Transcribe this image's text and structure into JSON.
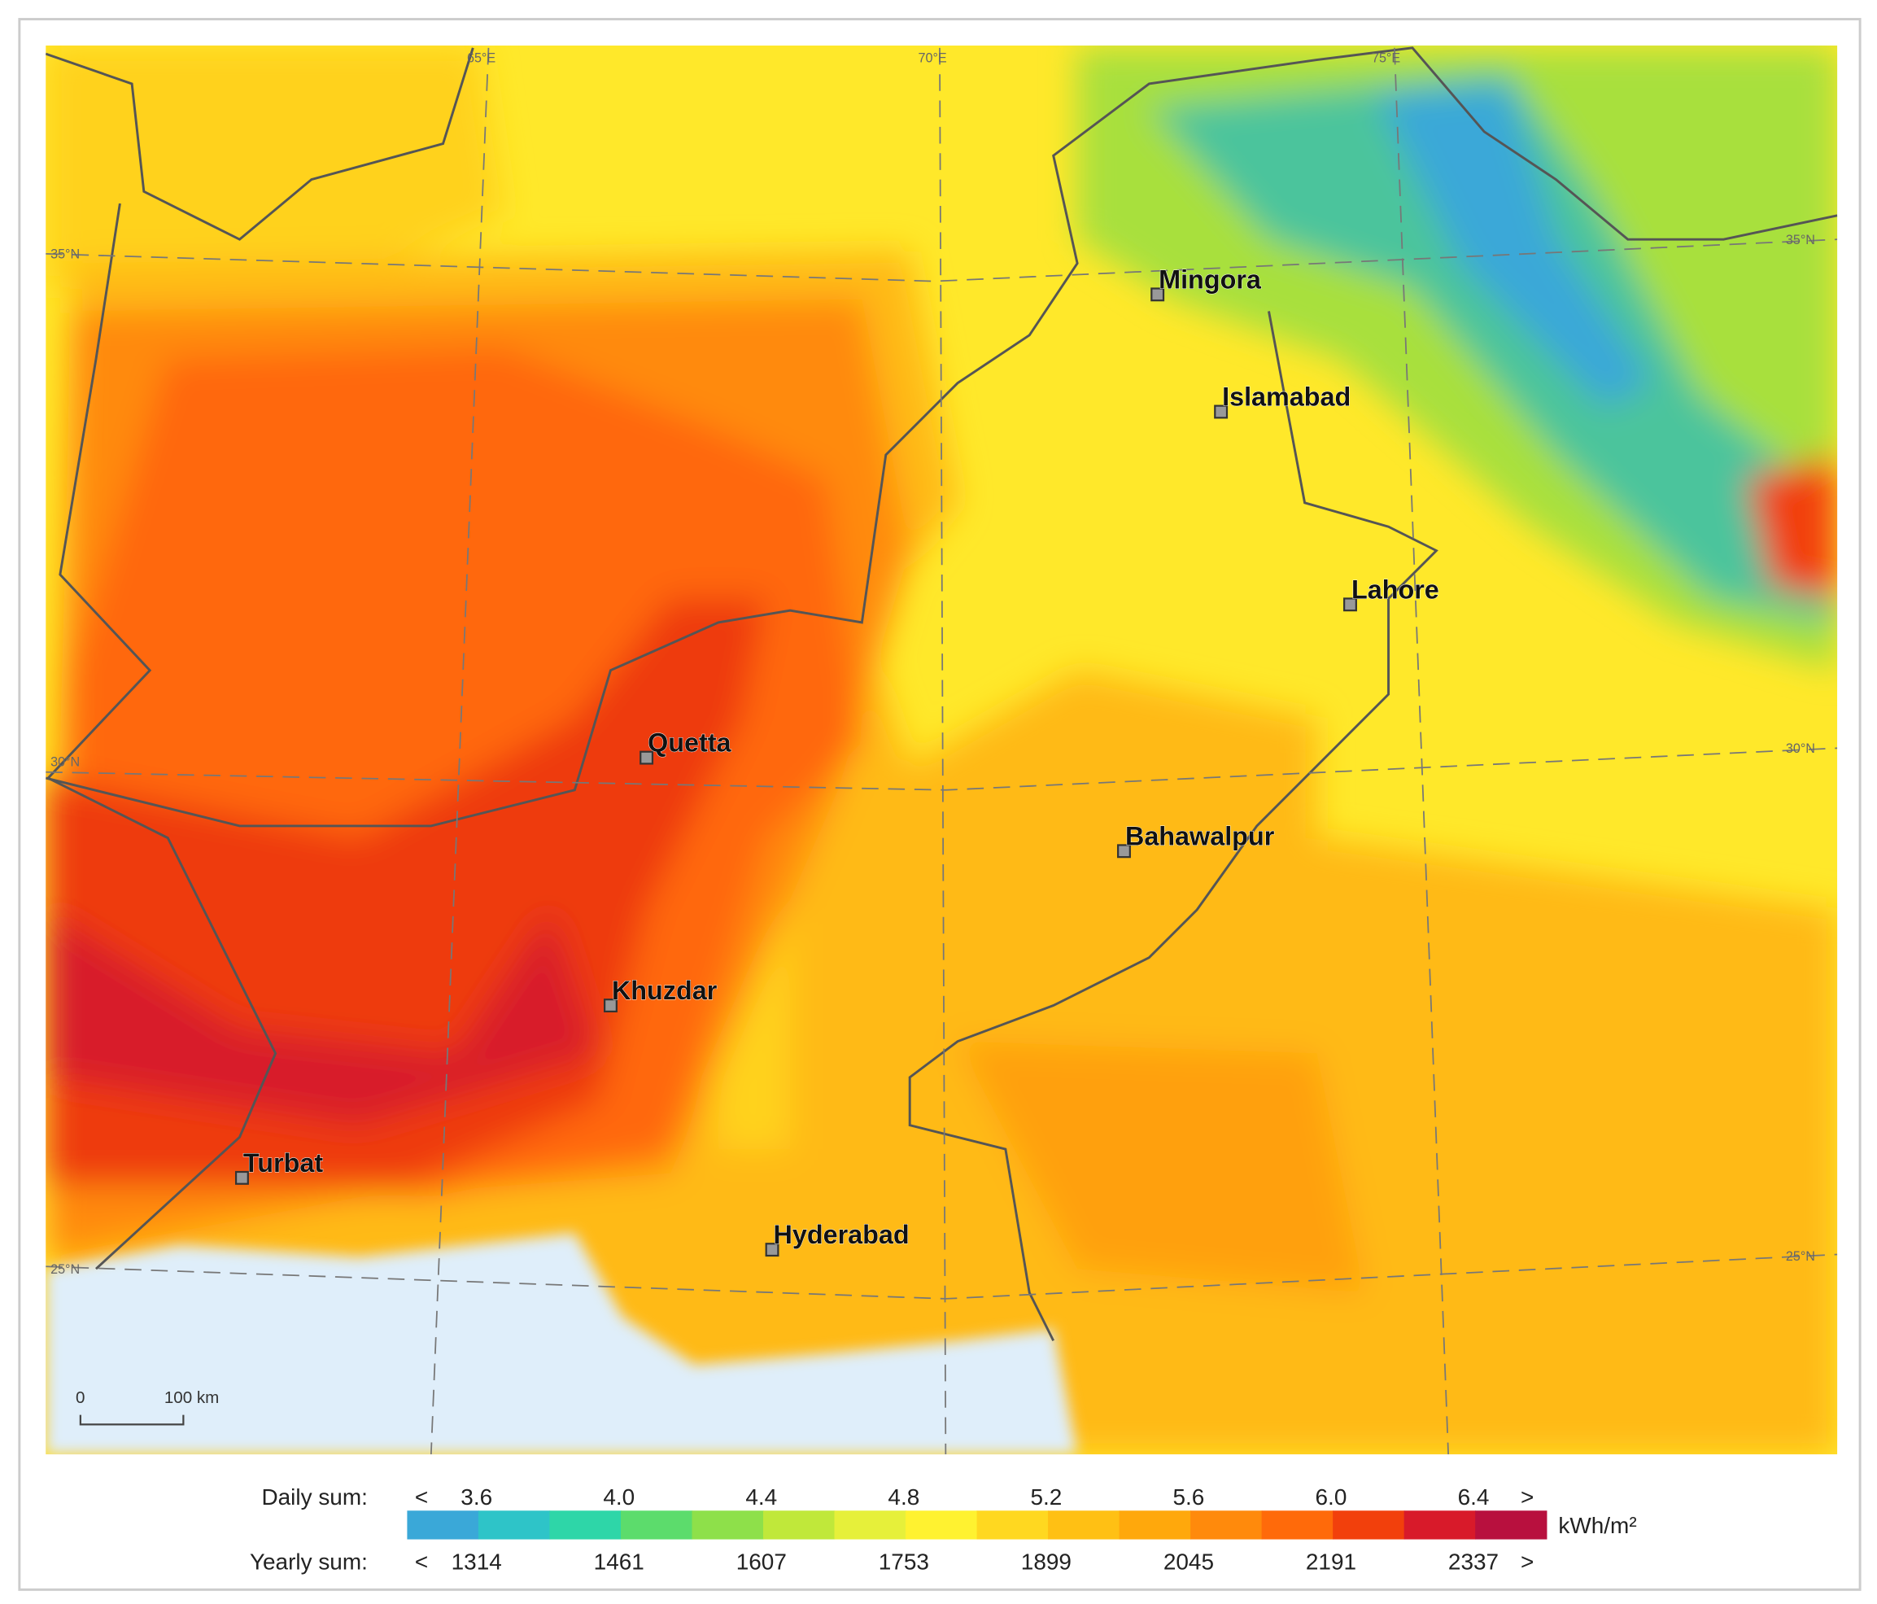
{
  "map": {
    "graticule": {
      "lon": [
        "65°E",
        "70°E",
        "75°E"
      ],
      "lat_left": [
        "35°N",
        "30°N",
        "25°N"
      ],
      "lat_right": [
        "35°N",
        "30°N",
        "25°N"
      ]
    },
    "cities": [
      "Mingora",
      "Islamabad",
      "Lahore",
      "Quetta",
      "Bahawalpur",
      "Khuzdar",
      "Turbat",
      "Hyderabad"
    ],
    "scale_bar": {
      "start": "0",
      "end": "100 km"
    }
  },
  "legend": {
    "daily_label": "Daily sum:",
    "yearly_label": "Yearly sum:",
    "less": "<",
    "more": ">",
    "unit": "kWh/m²",
    "daily_ticks": [
      "3.6",
      "4.0",
      "4.4",
      "4.8",
      "5.2",
      "5.6",
      "6.0",
      "6.4"
    ],
    "yearly_ticks": [
      "1314",
      "1461",
      "1607",
      "1753",
      "1899",
      "2045",
      "2191",
      "2337"
    ],
    "colors": [
      "#3aa8d8",
      "#2ec4c8",
      "#2ed6a8",
      "#5cdc6c",
      "#8ee04a",
      "#c0e83a",
      "#e6f03a",
      "#fff230",
      "#ffd820",
      "#ffc014",
      "#ffa80c",
      "#ff8a0c",
      "#ff6a0a",
      "#f2400c",
      "#d81a2a",
      "#b8103e"
    ]
  }
}
